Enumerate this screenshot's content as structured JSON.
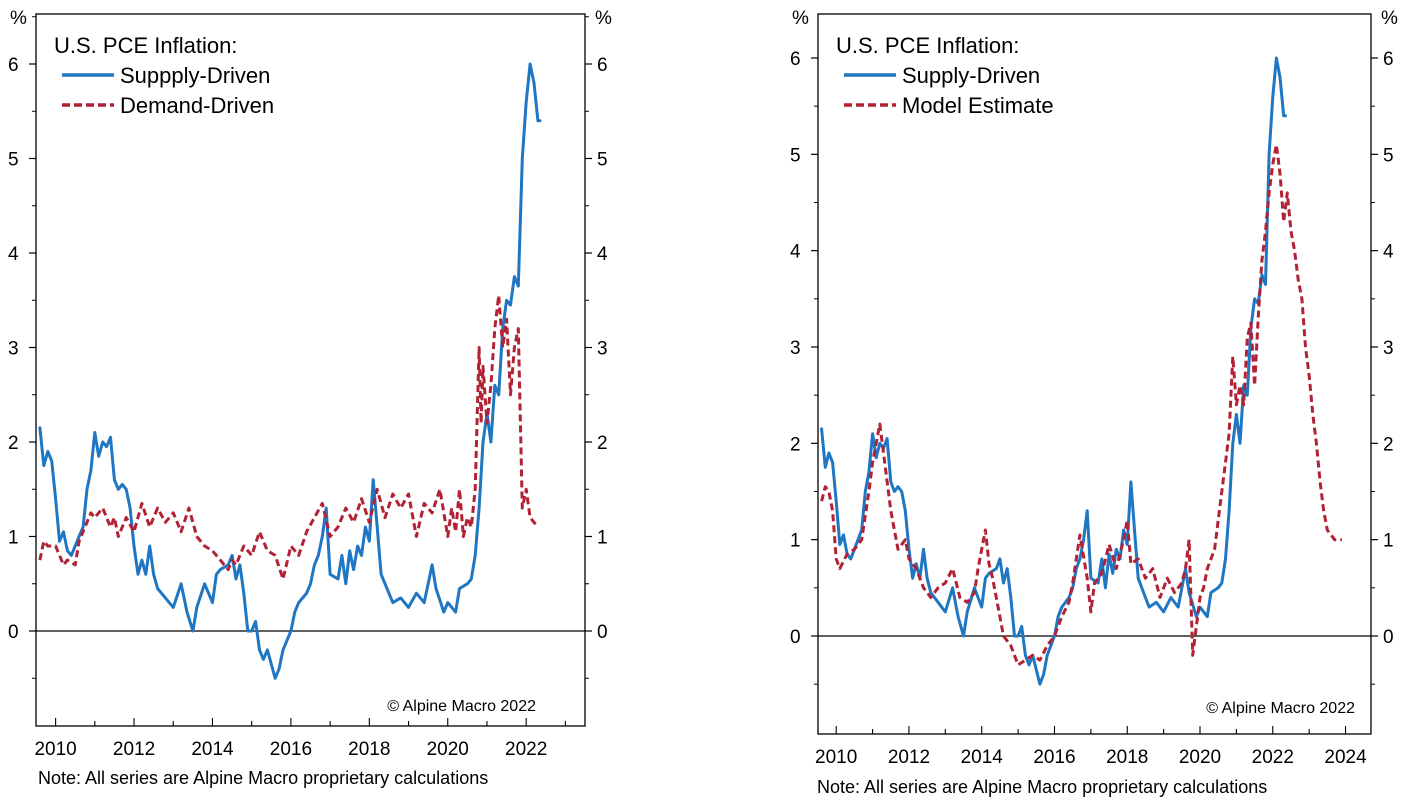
{
  "chart_data": [
    {
      "type": "line",
      "legend_title": "U.S. PCE Inflation:",
      "y_unit": "%",
      "xlim": [
        2009.5,
        2023.5
      ],
      "ylim": [
        -1,
        6.5
      ],
      "x_ticks": [
        2010,
        2012,
        2014,
        2016,
        2018,
        2020,
        2022
      ],
      "y_ticks": [
        0,
        1,
        2,
        3,
        4,
        5,
        6
      ],
      "grid": false,
      "zero_line": true,
      "legend_position": "top-left",
      "copyright": "© Alpine Macro 2022",
      "note": "Note: All series are Alpine Macro proprietary calculations",
      "series": [
        {
          "name": "Suppply-Driven",
          "color": "#1f77c4",
          "style": "solid",
          "x": [
            2009.6,
            2009.7,
            2009.8,
            2009.9,
            2010.0,
            2010.1,
            2010.2,
            2010.3,
            2010.4,
            2010.5,
            2010.6,
            2010.7,
            2010.8,
            2010.9,
            2011.0,
            2011.1,
            2011.2,
            2011.3,
            2011.4,
            2011.5,
            2011.6,
            2011.7,
            2011.8,
            2011.9,
            2012.0,
            2012.1,
            2012.2,
            2012.3,
            2012.4,
            2012.5,
            2012.6,
            2012.8,
            2013.0,
            2013.2,
            2013.35,
            2013.5,
            2013.6,
            2013.8,
            2014.0,
            2014.1,
            2014.2,
            2014.4,
            2014.5,
            2014.6,
            2014.7,
            2014.8,
            2014.9,
            2015.0,
            2015.1,
            2015.2,
            2015.3,
            2015.4,
            2015.5,
            2015.6,
            2015.7,
            2015.8,
            2016.0,
            2016.1,
            2016.2,
            2016.4,
            2016.5,
            2016.6,
            2016.7,
            2016.8,
            2016.9,
            2017.0,
            2017.2,
            2017.3,
            2017.4,
            2017.5,
            2017.6,
            2017.7,
            2017.8,
            2017.9,
            2018.0,
            2018.1,
            2018.2,
            2018.3,
            2018.5,
            2018.6,
            2018.8,
            2019.0,
            2019.2,
            2019.4,
            2019.6,
            2019.7,
            2019.9,
            2020.0,
            2020.2,
            2020.3,
            2020.5,
            2020.6,
            2020.7,
            2020.8,
            2020.9,
            2021.0,
            2021.1,
            2021.2,
            2021.3,
            2021.4,
            2021.5,
            2021.6,
            2021.7,
            2021.8,
            2021.9,
            2022.0,
            2022.1,
            2022.2,
            2022.3,
            2022.35
          ],
          "y": [
            2.15,
            1.75,
            1.9,
            1.8,
            1.4,
            0.95,
            1.05,
            0.85,
            0.8,
            0.9,
            1.0,
            1.1,
            1.5,
            1.7,
            2.1,
            1.85,
            2.0,
            1.95,
            2.05,
            1.6,
            1.5,
            1.55,
            1.5,
            1.3,
            0.9,
            0.6,
            0.75,
            0.6,
            0.9,
            0.6,
            0.45,
            0.35,
            0.25,
            0.5,
            0.2,
            0.0,
            0.25,
            0.5,
            0.3,
            0.6,
            0.65,
            0.7,
            0.8,
            0.55,
            0.7,
            0.4,
            0.0,
            0.0,
            0.1,
            -0.2,
            -0.3,
            -0.2,
            -0.35,
            -0.5,
            -0.4,
            -0.2,
            0.0,
            0.2,
            0.3,
            0.4,
            0.5,
            0.7,
            0.8,
            1.0,
            1.3,
            0.6,
            0.55,
            0.8,
            0.5,
            0.85,
            0.65,
            0.9,
            0.8,
            1.1,
            0.95,
            1.6,
            1.1,
            0.6,
            0.4,
            0.3,
            0.35,
            0.25,
            0.4,
            0.3,
            0.7,
            0.45,
            0.2,
            0.3,
            0.2,
            0.45,
            0.5,
            0.55,
            0.8,
            1.3,
            2.0,
            2.3,
            2.0,
            2.6,
            2.5,
            3.2,
            3.5,
            3.45,
            3.75,
            3.65,
            5.0,
            5.6,
            6.0,
            5.8,
            5.4,
            5.4
          ]
        },
        {
          "name": "Demand-Driven",
          "color": "#b22234",
          "style": "dashed",
          "x": [
            2009.6,
            2009.7,
            2009.8,
            2010.0,
            2010.2,
            2010.3,
            2010.5,
            2010.6,
            2010.8,
            2010.9,
            2011.0,
            2011.2,
            2011.4,
            2011.5,
            2011.6,
            2011.8,
            2012.0,
            2012.2,
            2012.4,
            2012.6,
            2012.8,
            2013.0,
            2013.2,
            2013.4,
            2013.6,
            2013.8,
            2014.0,
            2014.2,
            2014.4,
            2014.5,
            2014.6,
            2014.8,
            2015.0,
            2015.2,
            2015.4,
            2015.6,
            2015.8,
            2016.0,
            2016.2,
            2016.4,
            2016.6,
            2016.8,
            2017.0,
            2017.2,
            2017.4,
            2017.6,
            2017.8,
            2018.0,
            2018.2,
            2018.4,
            2018.6,
            2018.8,
            2019.0,
            2019.2,
            2019.4,
            2019.6,
            2019.8,
            2020.0,
            2020.1,
            2020.2,
            2020.3,
            2020.4,
            2020.5,
            2020.6,
            2020.7,
            2020.8,
            2020.85,
            2020.9,
            2021.0,
            2021.1,
            2021.2,
            2021.3,
            2021.4,
            2021.5,
            2021.6,
            2021.7,
            2021.8,
            2021.9,
            2022.0,
            2022.1,
            2022.2,
            2022.3
          ],
          "y": [
            0.75,
            0.95,
            0.9,
            0.9,
            0.7,
            0.75,
            0.7,
            0.95,
            1.15,
            1.25,
            1.2,
            1.3,
            1.1,
            1.2,
            1.0,
            1.2,
            1.05,
            1.35,
            1.1,
            1.3,
            1.15,
            1.25,
            1.05,
            1.3,
            1.0,
            0.9,
            0.85,
            0.75,
            0.65,
            0.75,
            0.7,
            0.9,
            0.8,
            1.05,
            0.85,
            0.8,
            0.55,
            0.9,
            0.8,
            1.05,
            1.2,
            1.35,
            1.0,
            1.1,
            1.3,
            1.15,
            1.4,
            1.15,
            1.5,
            1.2,
            1.45,
            1.3,
            1.45,
            1.0,
            1.35,
            1.25,
            1.5,
            1.0,
            1.3,
            1.05,
            1.5,
            1.0,
            1.2,
            1.1,
            1.5,
            3.0,
            2.2,
            2.8,
            2.2,
            2.6,
            3.2,
            3.55,
            3.0,
            3.3,
            2.5,
            3.0,
            3.2,
            1.3,
            1.5,
            1.2,
            1.15,
            1.1
          ]
        }
      ]
    },
    {
      "type": "line",
      "legend_title": "U.S. PCE Inflation:",
      "y_unit": "%",
      "xlim": [
        2009.5,
        2024.7
      ],
      "ylim": [
        -1,
        6.5
      ],
      "x_ticks": [
        2010,
        2012,
        2014,
        2016,
        2018,
        2020,
        2022,
        2024
      ],
      "y_ticks": [
        0,
        1,
        2,
        3,
        4,
        5,
        6
      ],
      "grid": false,
      "zero_line": true,
      "legend_position": "top-left",
      "copyright": "© Alpine Macro 2022",
      "note": "Note: All series are Alpine Macro proprietary calculations",
      "series": [
        {
          "name": "Supply-Driven",
          "color": "#1f77c4",
          "style": "solid",
          "x": [
            2009.6,
            2009.7,
            2009.8,
            2009.9,
            2010.0,
            2010.1,
            2010.2,
            2010.3,
            2010.4,
            2010.5,
            2010.6,
            2010.7,
            2010.8,
            2010.9,
            2011.0,
            2011.1,
            2011.2,
            2011.3,
            2011.4,
            2011.5,
            2011.6,
            2011.7,
            2011.8,
            2011.9,
            2012.0,
            2012.1,
            2012.2,
            2012.3,
            2012.4,
            2012.5,
            2012.6,
            2012.8,
            2013.0,
            2013.2,
            2013.35,
            2013.5,
            2013.6,
            2013.8,
            2014.0,
            2014.1,
            2014.2,
            2014.4,
            2014.5,
            2014.6,
            2014.7,
            2014.8,
            2014.9,
            2015.0,
            2015.1,
            2015.2,
            2015.3,
            2015.4,
            2015.5,
            2015.6,
            2015.7,
            2015.8,
            2016.0,
            2016.1,
            2016.2,
            2016.4,
            2016.5,
            2016.6,
            2016.7,
            2016.8,
            2016.9,
            2017.0,
            2017.2,
            2017.3,
            2017.4,
            2017.5,
            2017.6,
            2017.7,
            2017.8,
            2017.9,
            2018.0,
            2018.1,
            2018.2,
            2018.3,
            2018.5,
            2018.6,
            2018.8,
            2019.0,
            2019.2,
            2019.4,
            2019.6,
            2019.7,
            2019.9,
            2020.0,
            2020.2,
            2020.3,
            2020.5,
            2020.6,
            2020.7,
            2020.8,
            2020.9,
            2021.0,
            2021.1,
            2021.2,
            2021.3,
            2021.4,
            2021.5,
            2021.6,
            2021.7,
            2021.8,
            2021.9,
            2022.0,
            2022.1,
            2022.2,
            2022.3,
            2022.35
          ],
          "y": [
            2.15,
            1.75,
            1.9,
            1.8,
            1.4,
            0.95,
            1.05,
            0.85,
            0.8,
            0.9,
            1.0,
            1.1,
            1.5,
            1.7,
            2.1,
            1.85,
            2.0,
            1.95,
            2.05,
            1.6,
            1.5,
            1.55,
            1.5,
            1.3,
            0.9,
            0.6,
            0.75,
            0.6,
            0.9,
            0.6,
            0.45,
            0.35,
            0.25,
            0.5,
            0.2,
            0.0,
            0.25,
            0.5,
            0.3,
            0.6,
            0.65,
            0.7,
            0.8,
            0.55,
            0.7,
            0.4,
            0.0,
            0.0,
            0.1,
            -0.2,
            -0.3,
            -0.2,
            -0.35,
            -0.5,
            -0.4,
            -0.2,
            0.0,
            0.2,
            0.3,
            0.4,
            0.5,
            0.7,
            0.8,
            1.0,
            1.3,
            0.6,
            0.55,
            0.8,
            0.5,
            0.85,
            0.65,
            0.9,
            0.8,
            1.1,
            0.95,
            1.6,
            1.1,
            0.6,
            0.4,
            0.3,
            0.35,
            0.25,
            0.4,
            0.3,
            0.7,
            0.45,
            0.2,
            0.3,
            0.2,
            0.45,
            0.5,
            0.55,
            0.8,
            1.3,
            2.0,
            2.3,
            2.0,
            2.6,
            2.5,
            3.2,
            3.5,
            3.45,
            3.75,
            3.65,
            5.0,
            5.6,
            6.0,
            5.8,
            5.4,
            5.4
          ]
        },
        {
          "name": "Model Estimate",
          "color": "#b22234",
          "style": "dashed",
          "x": [
            2009.6,
            2009.7,
            2009.8,
            2009.9,
            2010.0,
            2010.1,
            2010.3,
            2010.5,
            2010.7,
            2010.9,
            2011.0,
            2011.1,
            2011.2,
            2011.3,
            2011.5,
            2011.7,
            2011.9,
            2012.0,
            2012.2,
            2012.4,
            2012.6,
            2012.8,
            2013.0,
            2013.2,
            2013.4,
            2013.6,
            2013.8,
            2013.9,
            2014.0,
            2014.1,
            2014.2,
            2014.3,
            2014.5,
            2014.6,
            2014.8,
            2015.0,
            2015.2,
            2015.4,
            2015.6,
            2015.8,
            2016.0,
            2016.2,
            2016.4,
            2016.5,
            2016.6,
            2016.7,
            2016.9,
            2017.0,
            2017.1,
            2017.3,
            2017.5,
            2017.7,
            2017.9,
            2018.0,
            2018.1,
            2018.3,
            2018.5,
            2018.7,
            2018.9,
            2019.1,
            2019.3,
            2019.5,
            2019.6,
            2019.7,
            2019.8,
            2020.0,
            2020.1,
            2020.2,
            2020.4,
            2020.6,
            2020.8,
            2020.9,
            2021.0,
            2021.1,
            2021.2,
            2021.3,
            2021.4,
            2021.5,
            2021.6,
            2021.7,
            2021.8,
            2021.9,
            2022.0,
            2022.1,
            2022.2,
            2022.3,
            2022.4,
            2022.5,
            2022.6,
            2022.7,
            2022.8,
            2022.9,
            2023.0,
            2023.1,
            2023.2,
            2023.3,
            2023.4,
            2023.5,
            2023.6,
            2023.7,
            2023.8,
            2023.9
          ],
          "y": [
            1.4,
            1.55,
            1.5,
            1.3,
            0.8,
            0.7,
            0.85,
            0.9,
            1.0,
            1.5,
            1.8,
            2.0,
            2.2,
            1.9,
            1.3,
            0.9,
            1.0,
            0.8,
            0.7,
            0.5,
            0.4,
            0.5,
            0.55,
            0.7,
            0.4,
            0.35,
            0.45,
            0.7,
            0.9,
            1.1,
            0.75,
            0.6,
            0.2,
            0.0,
            -0.1,
            -0.3,
            -0.25,
            -0.2,
            -0.25,
            -0.1,
            0.0,
            0.2,
            0.35,
            0.55,
            0.8,
            1.05,
            0.6,
            0.25,
            0.55,
            0.65,
            0.95,
            0.7,
            1.0,
            1.2,
            0.75,
            0.8,
            0.6,
            0.7,
            0.4,
            0.6,
            0.45,
            0.55,
            0.7,
            1.0,
            -0.2,
            0.4,
            0.5,
            0.7,
            0.9,
            1.5,
            2.1,
            2.9,
            2.4,
            2.6,
            2.4,
            3.1,
            3.25,
            2.6,
            3.3,
            3.9,
            4.2,
            4.6,
            4.9,
            5.1,
            4.8,
            4.3,
            4.6,
            4.2,
            4.0,
            3.7,
            3.5,
            3.0,
            2.7,
            2.3,
            2.0,
            1.6,
            1.3,
            1.1,
            1.05,
            1.0,
            1.0,
            1.0
          ]
        }
      ]
    }
  ]
}
